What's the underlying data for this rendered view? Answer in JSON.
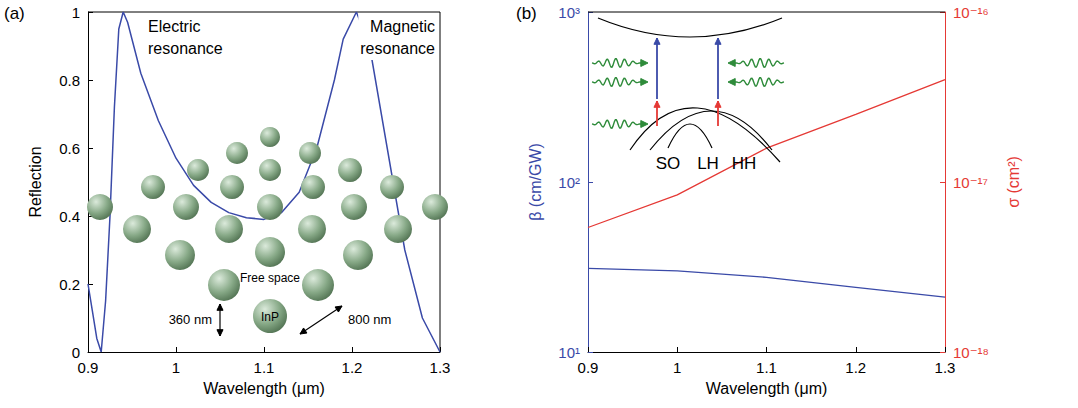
{
  "chart_data": [
    {
      "title": "(a)",
      "type": "line",
      "x_label": "Wavelength (μm)",
      "y_label": "Reflection",
      "x": [
        0.9,
        0.905,
        0.91,
        0.915,
        0.92,
        0.925,
        0.93,
        0.935,
        0.94,
        0.945,
        0.95,
        0.96,
        0.98,
        1.0,
        1.02,
        1.04,
        1.06,
        1.08,
        1.1,
        1.12,
        1.14,
        1.16,
        1.18,
        1.19,
        1.205,
        1.22,
        1.24,
        1.26,
        1.28,
        1.3
      ],
      "values": [
        0.2,
        0.12,
        0.04,
        0.0,
        0.15,
        0.4,
        0.72,
        0.95,
        1.0,
        0.97,
        0.92,
        0.82,
        0.68,
        0.57,
        0.49,
        0.44,
        0.41,
        0.395,
        0.39,
        0.41,
        0.47,
        0.6,
        0.8,
        0.92,
        1.0,
        0.9,
        0.6,
        0.3,
        0.1,
        0.0
      ],
      "color": "#3a4aa8",
      "xlim": [
        0.9,
        1.3
      ],
      "xticks": [
        0.9,
        1,
        1.1,
        1.2,
        1.3
      ],
      "ylim": [
        0,
        1
      ],
      "yticks": [
        0,
        0.2,
        0.4,
        0.6,
        0.8,
        1
      ],
      "grid": false,
      "annotations": [
        "Electric resonance",
        "Magnetic resonance",
        "Free space",
        "360 nm",
        "800 nm",
        "InP"
      ]
    },
    {
      "title": "(b)",
      "type": "line",
      "x_label": "Wavelength (μm)",
      "y_label": "β (cm/GW)",
      "y2_label": "σ (cm²)",
      "x": [
        0.9,
        1.0,
        1.1,
        1.2,
        1.3
      ],
      "series": [
        {
          "color": "#3a4aa8",
          "values": [
            31,
            30,
            27.5,
            24,
            21
          ]
        },
        {
          "color": "#e53935",
          "values": [
            5.4e-18,
            8.4e-18,
            1.58e-17,
            2.5e-17,
            4e-17
          ],
          "axis": "y2"
        }
      ],
      "log": "y",
      "xlim": [
        0.9,
        1.3
      ],
      "xticks": [
        0.9,
        1,
        1.1,
        1.2,
        1.3
      ],
      "ylim": [
        10,
        1000
      ],
      "yticks": [
        {
          "value": 10,
          "label": "10¹"
        },
        {
          "value": 100,
          "label": "10²"
        },
        {
          "value": 1000,
          "label": "10³"
        }
      ],
      "y2lim": [
        1e-18,
        1e-16
      ],
      "y2ticks": [
        {
          "value": 1e-18,
          "label": "10⁻¹⁸"
        },
        {
          "value": 1e-17,
          "label": "10⁻¹⁷"
        },
        {
          "value": 1e-16,
          "label": "10⁻¹⁶"
        }
      ],
      "grid": false,
      "annotations": [
        "SO",
        "LH",
        "HH"
      ]
    }
  ]
}
